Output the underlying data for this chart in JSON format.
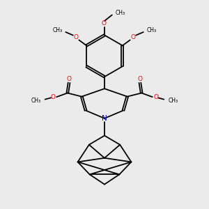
{
  "bg_color": "#ebebeb",
  "bond_color": "#000000",
  "o_color": "#ff0000",
  "n_color": "#0000cc",
  "lw": 1.3,
  "dbo": 0.055,
  "fig_w": 3.0,
  "fig_h": 3.0,
  "dpi": 100,
  "xlim": [
    0,
    10
  ],
  "ylim": [
    0,
    10.5
  ]
}
